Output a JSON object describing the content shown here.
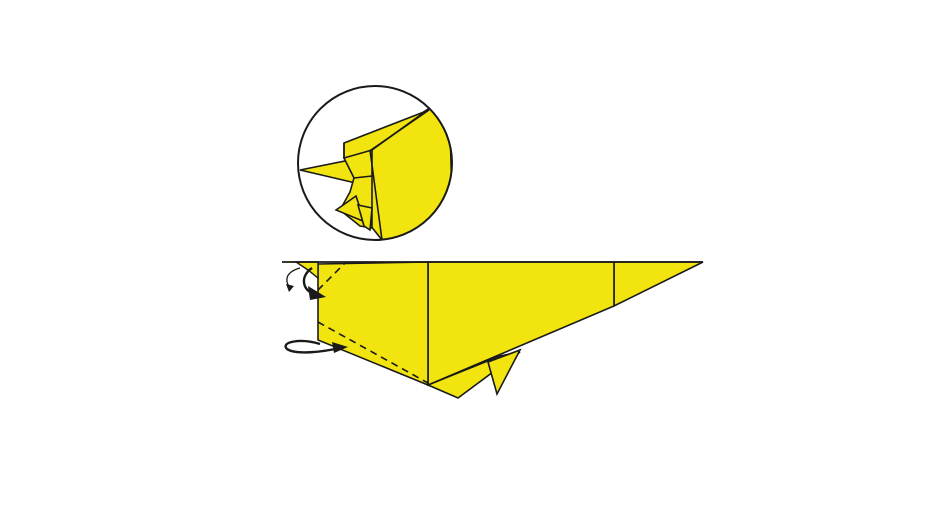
{
  "diagram": {
    "kind": "origami-fold-step",
    "colors": {
      "paper": "#F2E40F",
      "line": "#1a1a1a",
      "background": "#ffffff",
      "arrow": "#1a1a1a"
    },
    "parts": {
      "detail_view": "magnified-detail-circle",
      "model": "folded-paper-model",
      "fold_lines": [
        "valley-fold-top-corner",
        "valley-fold-bottom-edge"
      ],
      "arrows": [
        "fold-arrow-top",
        "turn-over-arrow-bottom"
      ]
    }
  }
}
